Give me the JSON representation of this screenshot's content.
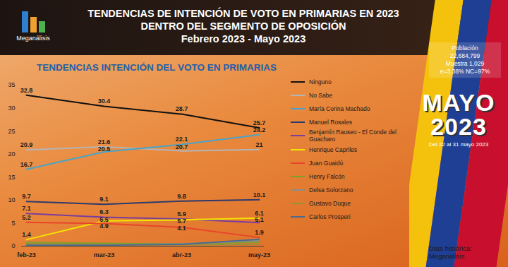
{
  "header": {
    "logo": "Meganálisis",
    "title": [
      "TENDENCIAS DE INTENCIÓN DE VOTO EN PRIMARIAS EN 2023",
      "DENTRO DEL SEGMENTO DE OPOSICIÓN",
      "Febrero 2023  - Mayo 2023"
    ]
  },
  "panel": {
    "info": [
      "Población",
      "22,684,799",
      "Muestra 1,029",
      "e=3.38%  NC=97%"
    ],
    "big": [
      "MAYO",
      "2023"
    ],
    "date": "Del 22 al 31 mayo 2023"
  },
  "footer": [
    "Data histórica:",
    "Meganalisis"
  ],
  "chart_data": {
    "type": "line",
    "title": "TENDENCIAS INTENCIÓN DEL VOTO EN PRIMARIAS",
    "categories": [
      "feb-23",
      "mar-23",
      "abr-23",
      "may-23"
    ],
    "ylim": [
      0,
      35
    ],
    "yticks": [
      0,
      5,
      10,
      15,
      20,
      25,
      30,
      35
    ],
    "grid": false,
    "legend": "right",
    "data_labels": true,
    "series": [
      {
        "name": "Ninguno",
        "color": "#111111",
        "values": [
          32.8,
          30.4,
          28.7,
          25.7
        ],
        "value_labels": [
          "32.8",
          "30.4",
          "28.7",
          "25.7"
        ]
      },
      {
        "name": "No Sabe",
        "color": "#b4b4b4",
        "values": [
          20.9,
          21.6,
          20.7,
          21
        ],
        "value_labels": [
          "20.9",
          "21.6",
          "20.7",
          "21"
        ]
      },
      {
        "name": "María Corina Machado",
        "color": "#4aa3c8",
        "values": [
          16.7,
          20.5,
          22.1,
          24.2
        ],
        "value_labels": [
          "16.7",
          "20.5",
          "22.1",
          "24.2"
        ]
      },
      {
        "name": "Manuel Rosales",
        "color": "#2e3a6b",
        "values": [
          9.7,
          9.1,
          9.8,
          10.1
        ],
        "value_labels": [
          "9.7",
          "9.1",
          "9.8",
          "10.1"
        ]
      },
      {
        "name": "Benjamín Rauseo - El Conde del Guacharo",
        "color": "#7a3e9d",
        "values": [
          7.1,
          6.3,
          5.9,
          5.1
        ],
        "value_labels": [
          "7.1",
          "6.3",
          "5.9",
          "5.1"
        ]
      },
      {
        "name": "Henrique Capriles",
        "color": "#f5e400",
        "values": [
          1.4,
          5.5,
          5.7,
          6.1
        ],
        "value_labels": [
          "1.4",
          "5.5",
          "5.7",
          "6.1"
        ]
      },
      {
        "name": "Juan Guaidó",
        "color": "#e8452a",
        "values": [
          5.2,
          4.9,
          4.1,
          1.9
        ],
        "value_labels": [
          "5.2",
          "4.9",
          "4.1",
          "1.9"
        ]
      },
      {
        "name": "Henry Falcón",
        "color": "#7fa02a",
        "values": [
          0.8,
          0.6,
          0.5,
          0.9
        ],
        "value_labels": [
          null,
          null,
          null,
          null
        ]
      },
      {
        "name": "Delsa Solorzano",
        "color": "#8c8c8c",
        "values": [
          0.3,
          0.3,
          0.5,
          1.2
        ],
        "value_labels": [
          null,
          null,
          null,
          null
        ]
      },
      {
        "name": "Gustavo Duque",
        "color": "#9a8f3a",
        "values": [
          0.5,
          0.4,
          0.3,
          0.4
        ],
        "value_labels": [
          null,
          null,
          null,
          null
        ]
      },
      {
        "name": "Carlos Prosperi",
        "color": "#4d6a8c",
        "values": [
          0.2,
          0.2,
          0.4,
          1.5
        ],
        "value_labels": [
          null,
          null,
          null,
          null
        ]
      }
    ]
  }
}
